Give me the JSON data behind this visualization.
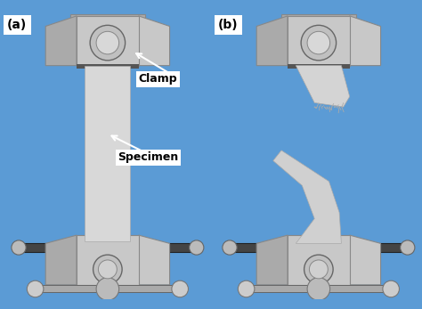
{
  "figure_width": 4.74,
  "figure_height": 3.47,
  "dpi": 100,
  "bg_color": "#5b9bd5",
  "panel_a_label": "(a)",
  "panel_b_label": "(b)",
  "clamp_label": "Clamp",
  "specimen_label": "Specimen",
  "font_size_label": 10,
  "font_size_annot": 9,
  "clamp_color": "#c8c8c8",
  "clamp_dark": "#888888",
  "clamp_mid": "#aaaaaa",
  "specimen_color": "#d4d4d4",
  "bolt_color": "#b0b0b0",
  "rod_color": "#999999"
}
